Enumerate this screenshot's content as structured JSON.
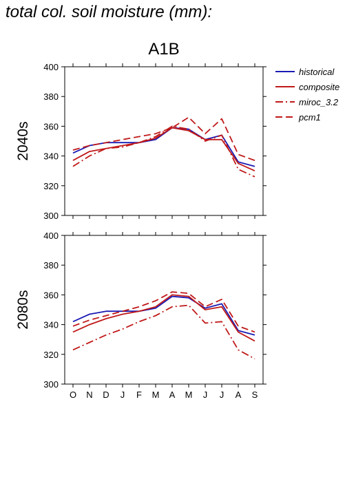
{
  "page": {
    "title": "total col. soil moisture (mm):"
  },
  "colors": {
    "historical": "#1a1ab4",
    "model": "#c01818"
  },
  "chart_data": {
    "type": "line",
    "title": "A1B",
    "categories": [
      "O",
      "N",
      "D",
      "J",
      "F",
      "M",
      "A",
      "M",
      "J",
      "J",
      "A",
      "S"
    ],
    "ylim": [
      300,
      400
    ],
    "yticks": [
      300,
      320,
      340,
      360,
      380,
      400
    ],
    "legend": {
      "placement": "right",
      "entries": [
        {
          "label": "historical",
          "style": "solid",
          "color": "#1a1ab4"
        },
        {
          "label": "composite",
          "style": "solid",
          "color": "#c01818"
        },
        {
          "label": "miroc_3.2",
          "style": "dashdot",
          "color": "#c01818"
        },
        {
          "label": "pcm1",
          "style": "dashed",
          "color": "#c01818"
        }
      ]
    },
    "panels": [
      {
        "row_label": "2040s",
        "series": [
          {
            "name": "historical",
            "values": [
              342,
              347,
              349,
              349,
              349,
              351,
              359,
              358,
              351,
              354,
              336,
              333
            ]
          },
          {
            "name": "composite",
            "values": [
              337,
              343,
              345,
              347,
              349,
              352,
              359,
              357,
              351,
              351,
              335,
              330
            ]
          },
          {
            "name": "miroc_3.2",
            "values": [
              333,
              340,
              345,
              346,
              349,
              353,
              360,
              358,
              350,
              354,
              331,
              326
            ]
          },
          {
            "name": "pcm1",
            "values": [
              344,
              347,
              349,
              351,
              353,
              355,
              359,
              366,
              355,
              365,
              341,
              337
            ]
          }
        ]
      },
      {
        "row_label": "2080s",
        "series": [
          {
            "name": "historical",
            "values": [
              342,
              347,
              349,
              349,
              349,
              351,
              359,
              358,
              351,
              354,
              336,
              333
            ]
          },
          {
            "name": "composite",
            "values": [
              335,
              340,
              344,
              347,
              349,
              352,
              360,
              359,
              350,
              352,
              335,
              329
            ]
          },
          {
            "name": "miroc_3.2",
            "values": [
              323,
              328,
              333,
              337,
              342,
              346,
              352,
              353,
              341,
              342,
              323,
              317
            ]
          },
          {
            "name": "pcm1",
            "values": [
              339,
              343,
              346,
              349,
              352,
              356,
              362,
              361,
              352,
              357,
              339,
              335
            ]
          }
        ]
      }
    ]
  }
}
